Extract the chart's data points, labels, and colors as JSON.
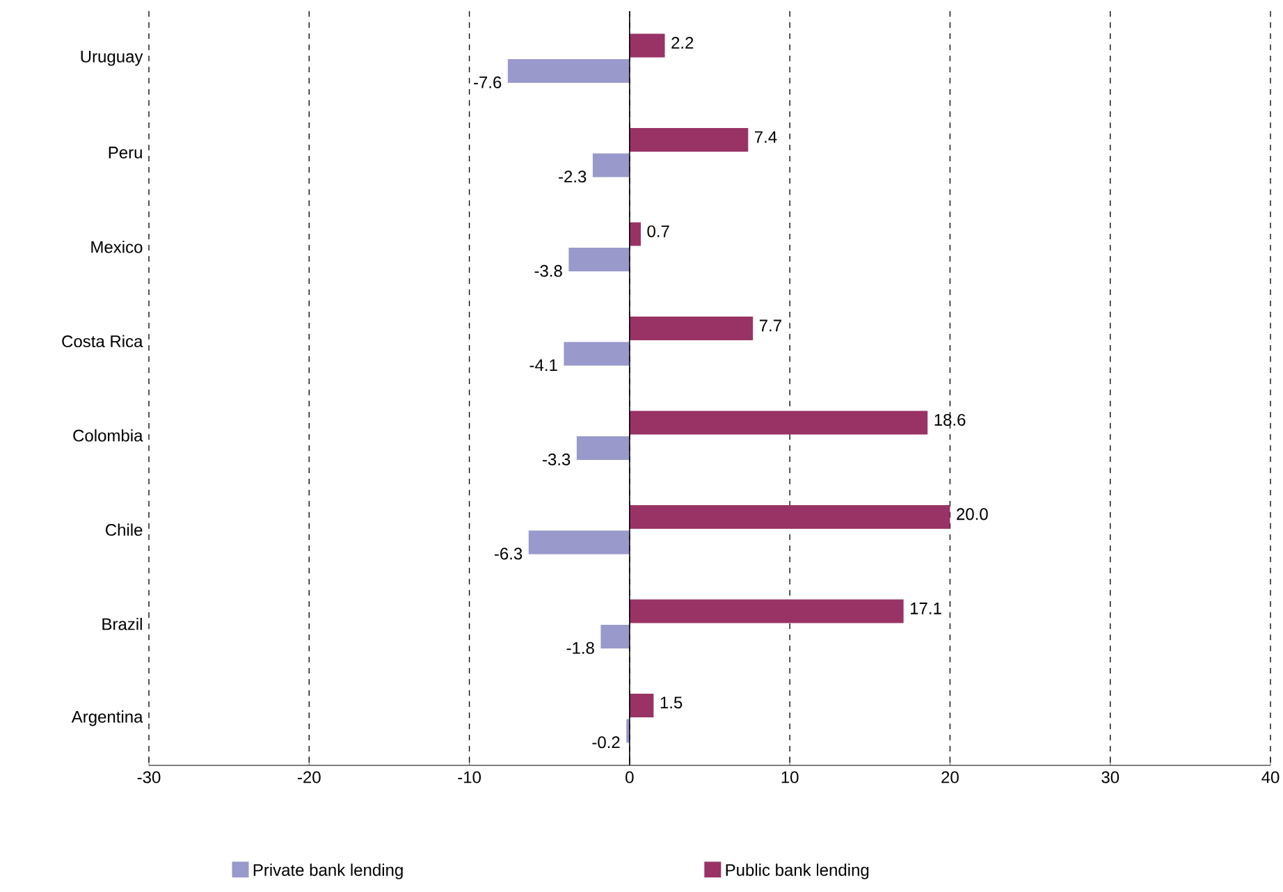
{
  "chart_data": {
    "type": "bar",
    "orientation": "horizontal",
    "categories": [
      "Uruguay",
      "Peru",
      "Mexico",
      "Costa Rica",
      "Colombia",
      "Chile",
      "Brazil",
      "Argentina"
    ],
    "series": [
      {
        "name": "Private bank lending",
        "color": "#9999cc",
        "values": [
          -7.6,
          -2.3,
          -3.8,
          -4.1,
          -3.3,
          -6.3,
          -1.8,
          -0.2
        ],
        "value_labels": [
          "-7.6",
          "-2.3",
          "-3.8",
          "-4.1",
          "-3.3",
          "-6.3",
          "-1.8",
          "-0.2"
        ]
      },
      {
        "name": "Public bank lending",
        "color": "#993366",
        "values": [
          2.2,
          7.4,
          0.7,
          7.7,
          18.6,
          20.0,
          17.1,
          1.5
        ],
        "value_labels": [
          "2.2",
          "7.4",
          "0.7",
          "7.7",
          "18.6",
          "20.0",
          "17.1",
          "1.5"
        ]
      }
    ],
    "xlim": [
      -30,
      40
    ],
    "xticks": [
      -30,
      -20,
      -10,
      0,
      10,
      20,
      30,
      40
    ],
    "grid": "x",
    "legend": "bottom"
  }
}
